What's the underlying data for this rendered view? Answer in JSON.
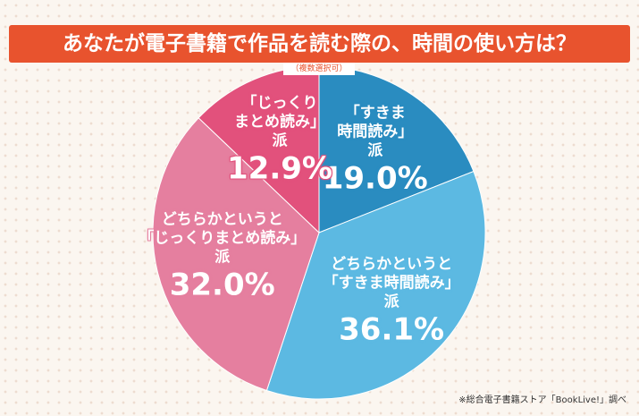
{
  "chart_data": {
    "type": "pie",
    "title": "あなたが電子書籍で作品を読む際の、時間の使い方は？",
    "subtitle": "（複数選択可）",
    "note": "※総合電子書籍ストア「BookLive!」調べ",
    "categories": [
      "「すきま\n時間読み」\n派",
      "どちらかというと\n「すきま時間読み」\n派",
      "どちらかというと\n「じっくりまとめ読み」\n派",
      "「じっくり\nまとめ読み」\n派"
    ],
    "values": [
      19.0,
      36.1,
      32.0,
      12.9
    ],
    "value_labels": [
      "19.0%",
      "36.1%",
      "32.0%",
      "12.9%"
    ],
    "colors": [
      "#2a8cc0",
      "#5cb9e2",
      "#e57f9f",
      "#e2517c"
    ]
  }
}
